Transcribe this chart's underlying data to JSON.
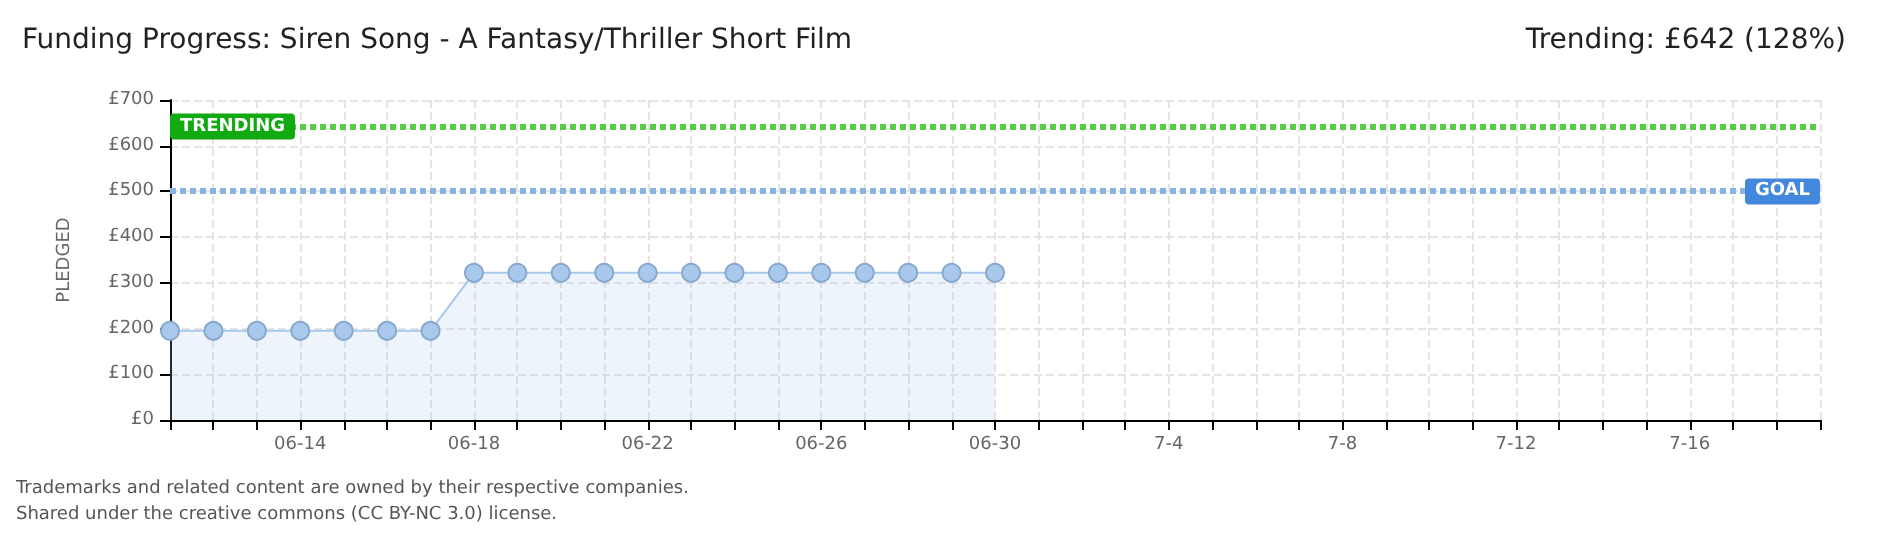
{
  "chart_data": {
    "type": "area",
    "title": "Funding Progress: Siren Song - A Fantasy/Thriller Short Film",
    "subtitle": "Trending: £642 (128%)",
    "ylabel": "PLEDGED",
    "categories": [
      null,
      null,
      null,
      "06-14",
      null,
      null,
      null,
      "06-18",
      null,
      null,
      null,
      "06-22",
      null,
      null,
      null,
      "06-26",
      null,
      null,
      null,
      "06-30",
      null,
      null,
      null,
      "7-4",
      null,
      null,
      null,
      "7-8",
      null,
      null,
      null,
      "7-12",
      null,
      null,
      null,
      "7-16",
      null,
      null,
      null
    ],
    "series": [
      {
        "color": "#a8c8ec",
        "values": [
          195,
          195,
          195,
          195,
          195,
          195,
          195,
          322,
          322,
          322,
          322,
          322,
          322,
          322,
          322,
          322,
          322,
          322,
          322,
          322,
          null,
          null,
          null,
          null,
          null,
          null,
          null,
          null,
          null,
          null,
          null,
          null,
          null,
          null,
          null,
          null,
          null,
          null,
          null
        ]
      }
    ],
    "ylim": [
      0,
      700
    ],
    "yticks": [
      {
        "value": 0,
        "label": "£0"
      },
      {
        "value": 100,
        "label": "£100"
      },
      {
        "value": 200,
        "label": "£200"
      },
      {
        "value": 300,
        "label": "£300"
      },
      {
        "value": 400,
        "label": "£400"
      },
      {
        "value": 500,
        "label": "£500"
      },
      {
        "value": 600,
        "label": "£600"
      },
      {
        "value": 700,
        "label": "£700"
      }
    ],
    "ref_lines": [
      {
        "axis": "y",
        "value": 642,
        "label": "TRENDING",
        "color": "#55cc44",
        "line_style": "dotted"
      },
      {
        "axis": "y",
        "value": 500,
        "label": "GOAL",
        "color": "#88b4e4",
        "line_style": "dotted"
      }
    ],
    "grid": true,
    "marker": "circle",
    "annotations": [
      "Trademarks and related content are owned by their respective companies.",
      "Shared under the creative commons (CC BY-NC 3.0) license."
    ]
  }
}
